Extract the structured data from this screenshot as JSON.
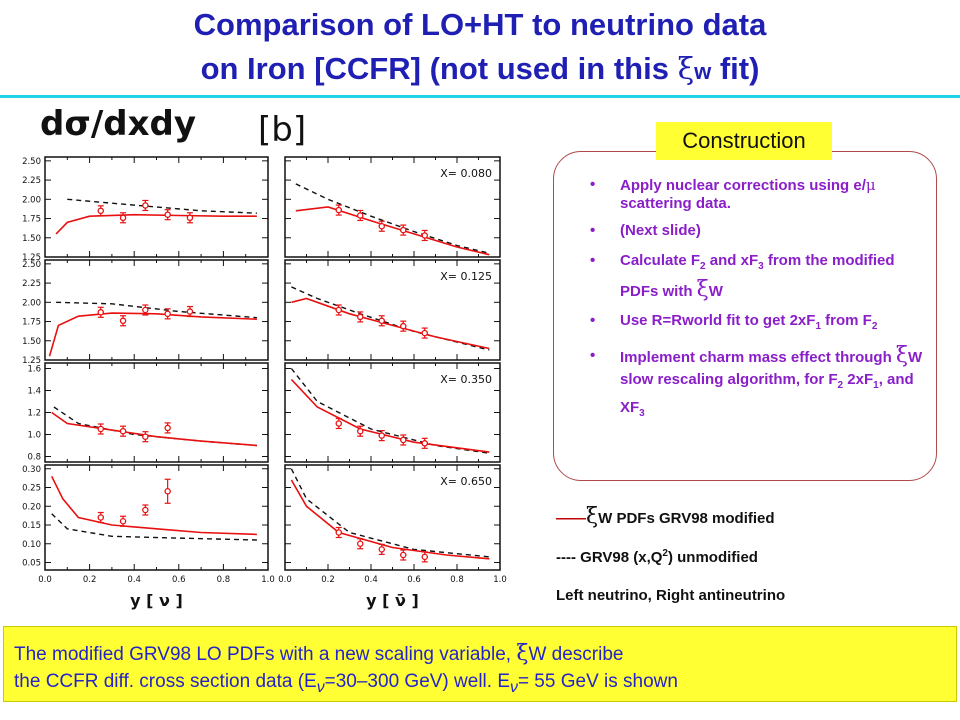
{
  "title": {
    "line1": "Comparison of LO+HT to neutrino data",
    "line2_pre": "on Iron [CCFR] (not used in this ",
    "line2_sym": "ξ",
    "line2_sub": "w",
    "line2_post": " fit)"
  },
  "figure": {
    "ylabel": "dσ/dxdy",
    "unit": "[b]",
    "xaxis_left": "y   [ ν ]",
    "xaxis_right": "y   [ ν̄ ]",
    "x_tick_labels": [
      "0.0",
      "0.2",
      "0.4",
      "0.6",
      "0.8",
      "1.0"
    ],
    "rows": [
      {
        "xlabel": "X= 0.080",
        "yticks": [
          "2.50",
          "2.25",
          "2.00",
          "1.75",
          "1.50",
          "1.25"
        ]
      },
      {
        "xlabel": "X= 0.125",
        "yticks": [
          "2.50",
          "2.25",
          "2.00",
          "1.75",
          "1.50",
          "1.25"
        ]
      },
      {
        "xlabel": "X= 0.350",
        "yticks": [
          "1.6",
          "1.4",
          "1.2",
          "1.0",
          "0.8"
        ]
      },
      {
        "xlabel": "X= 0.650",
        "yticks": [
          "0.30",
          "0.25",
          "0.20",
          "0.15",
          "0.10",
          "0.05"
        ]
      }
    ],
    "colors": {
      "model": "#e81010",
      "data": "#e81010",
      "unmodified": "#111111"
    }
  },
  "construction": {
    "tag": "Construction",
    "items": [
      "Apply nuclear corrections using e/μ scattering data.",
      "(Next slide)",
      "Calculate F2 and xF3 from the modified PDFs with ξW",
      "Use R=Rworld fit to get 2xF1 from F2",
      "Implement charm mass effect through ξW slow rescaling algorithm, for F2 2xF1, and XF3"
    ]
  },
  "legend": {
    "line1_sym": "ξ",
    "line1": "W PDFs GRV98 modified",
    "line2": "---- GRV98 (x,Q2) unmodified",
    "line3": "Left neutrino, Right antineutrino"
  },
  "bottom": {
    "line1_pre": "The modified GRV98 LO PDFs with a new scaling variable, ",
    "line1_sym": "ξ",
    "line1_post": "W describe",
    "line2": "the CCFR diff. cross section data (Eν=30–300 GeV) well. Eν= 55 GeV is shown"
  }
}
